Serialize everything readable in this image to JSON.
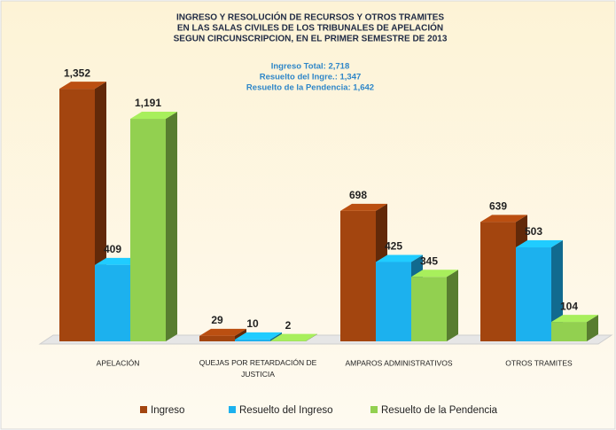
{
  "chart_data": {
    "type": "bar3d",
    "title": [
      "INGRESO Y RESOLUCIÓN DE RECURSOS Y OTROS TRAMITES",
      "EN LAS SALAS CIVILES DE LOS TRIBUNALES DE APELACIÓN",
      "SEGUN CIRCUNSCRIPCION, EN EL PRIMER SEMESTRE DE 2013"
    ],
    "annotations": [
      "Ingreso Total:  2,718",
      "Resuelto del Ingre.: 1,347",
      "Resuelto de la Pendencia:  1,642"
    ],
    "categories": [
      "APELACIÓN",
      "QUEJAS POR RETARDACIÓN DE JUSTICIA",
      "AMPAROS ADMINISTRATIVOS",
      "OTROS TRAMITES"
    ],
    "series": [
      {
        "name": "Ingreso",
        "color": "#a3450f",
        "values": [
          1352,
          29,
          698,
          639
        ],
        "value_labels": [
          "1,352",
          "29",
          "698",
          "639"
        ]
      },
      {
        "name": "Resuelto del Ingreso",
        "color": "#1cb1ee",
        "values": [
          409,
          10,
          425,
          503
        ],
        "value_labels": [
          "409",
          "10",
          "425",
          "503"
        ]
      },
      {
        "name": "Resuelto de la Pendencia",
        "color": "#92d050",
        "values": [
          1191,
          2,
          345,
          104
        ],
        "value_labels": [
          "1,191",
          "2",
          "345",
          "104"
        ]
      }
    ],
    "ylim": [
      0,
      1400
    ],
    "legend": "bottom"
  }
}
